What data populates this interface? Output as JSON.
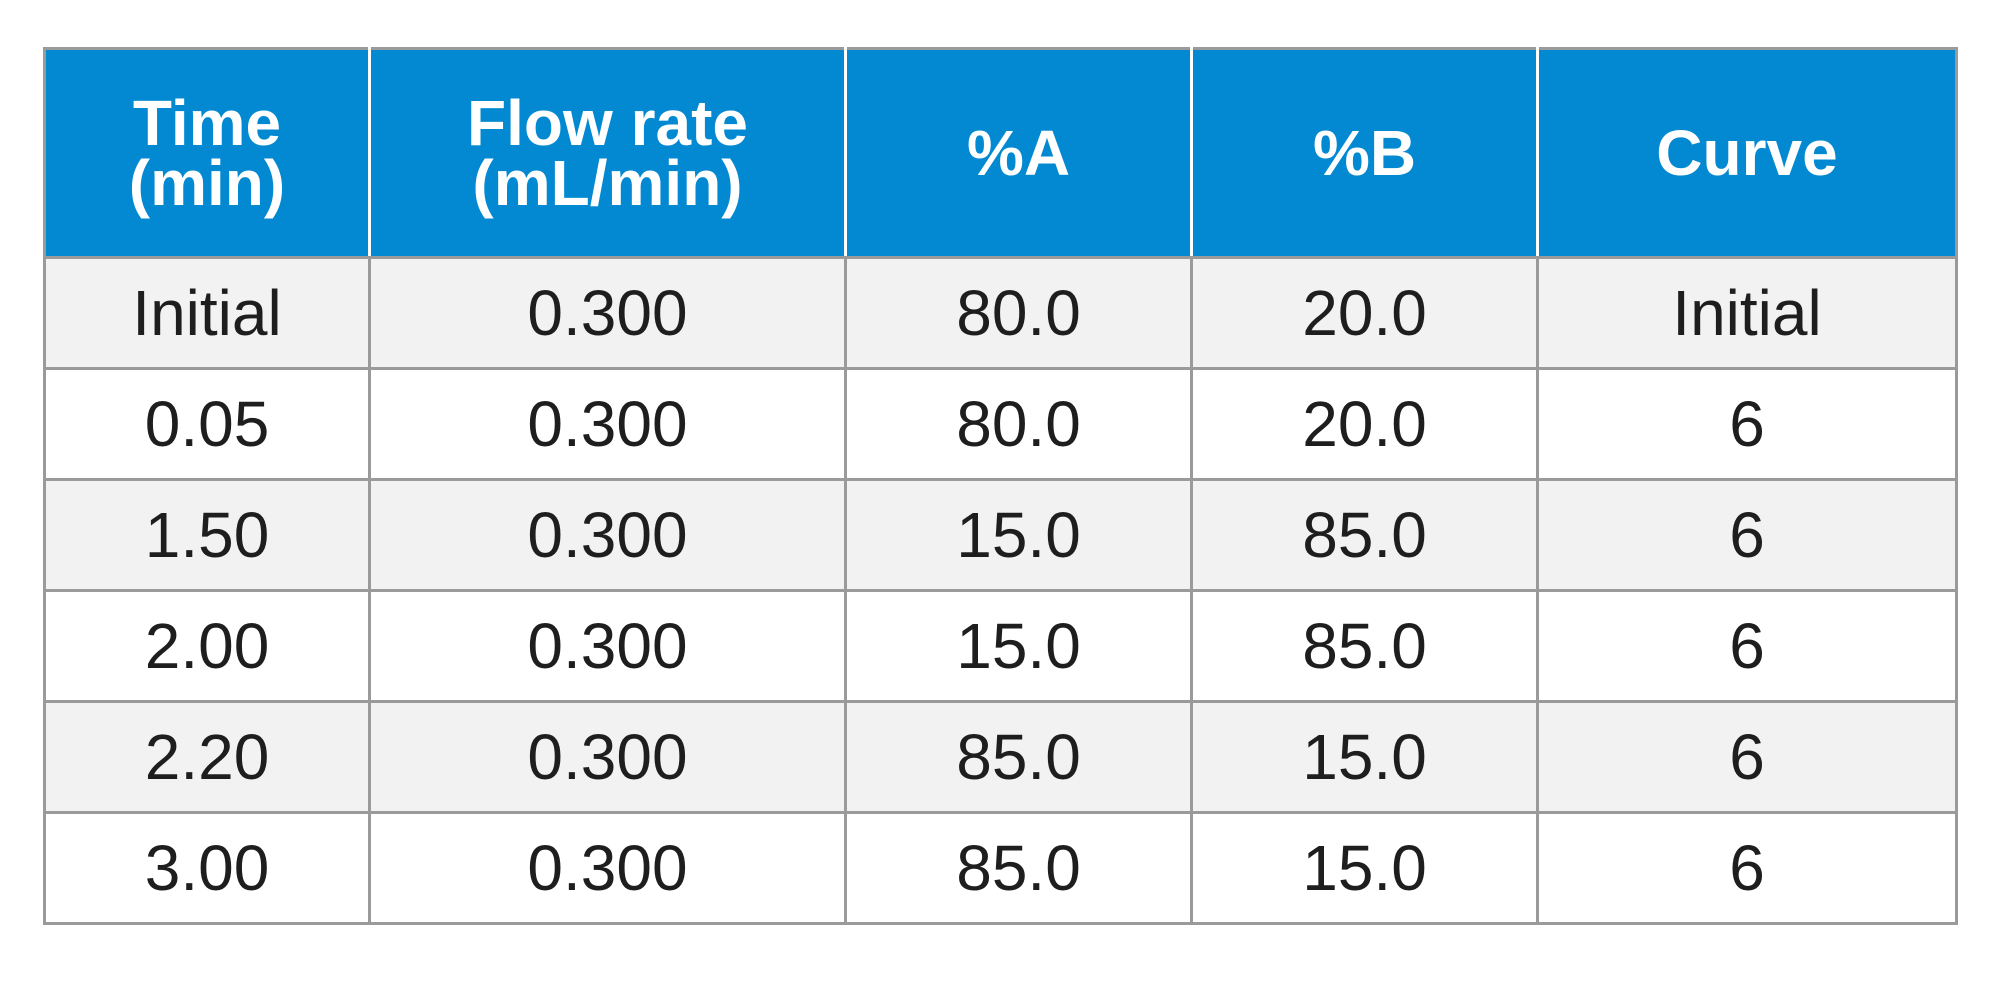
{
  "colors": {
    "header_bg": "#0389d1",
    "header_text": "#ffffff",
    "row_alt_bg": "#f2f2f3",
    "row_bg": "#ffffff",
    "border": "#9a9a9a",
    "text": "#1e1e1e"
  },
  "chart_data": {
    "type": "table",
    "columns": [
      {
        "lines": [
          "Time",
          "(min)"
        ]
      },
      {
        "lines": [
          "Flow rate",
          "(mL/min)"
        ]
      },
      {
        "lines": [
          "%A"
        ]
      },
      {
        "lines": [
          "%B"
        ]
      },
      {
        "lines": [
          "Curve"
        ]
      }
    ],
    "rows": [
      [
        "Initial",
        "0.300",
        "80.0",
        "20.0",
        "Initial"
      ],
      [
        "0.05",
        "0.300",
        "80.0",
        "20.0",
        "6"
      ],
      [
        "1.50",
        "0.300",
        "15.0",
        "85.0",
        "6"
      ],
      [
        "2.00",
        "0.300",
        "15.0",
        "85.0",
        "6"
      ],
      [
        "2.20",
        "0.300",
        "85.0",
        "15.0",
        "6"
      ],
      [
        "3.00",
        "0.300",
        "85.0",
        "15.0",
        "6"
      ]
    ]
  }
}
